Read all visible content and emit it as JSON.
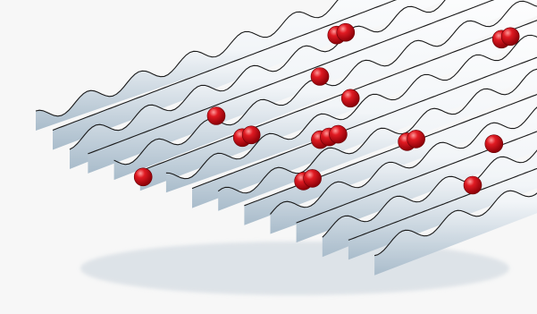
{
  "scene": {
    "description_hidden": "",
    "background_color": "#f7f7f7",
    "surface_color": "#ffffff",
    "surface_shadow": "#9fb5c7",
    "outline_color": "#1a1a1a",
    "atom_color": "#d10f1a",
    "atom_highlight": "#ff8a8a",
    "lattice": {
      "rows": 6,
      "cols": 8
    },
    "atoms": [
      {
        "r": 0,
        "c": 5,
        "count": 2
      },
      {
        "r": 1,
        "c": 2,
        "count": 1
      },
      {
        "r": 1,
        "c": 4,
        "count": 1
      },
      {
        "r": 2,
        "c": 0,
        "count": 1
      },
      {
        "r": 2,
        "c": 2,
        "count": 2
      },
      {
        "r": 2,
        "c": 4,
        "count": 1
      },
      {
        "r": 2,
        "c": 7,
        "count": 2
      },
      {
        "r": 3,
        "c": 3,
        "count": 3
      },
      {
        "r": 4,
        "c": 2,
        "count": 2
      },
      {
        "r": 4,
        "c": 4,
        "count": 2
      },
      {
        "r": 4,
        "c": 7,
        "count": 1
      },
      {
        "r": 4,
        "c": 9,
        "count": 2
      },
      {
        "r": 5,
        "c": 5,
        "count": 1
      },
      {
        "r": 6,
        "c": 4,
        "count": 1
      },
      {
        "r": 6,
        "c": 6,
        "count": 2
      }
    ]
  }
}
